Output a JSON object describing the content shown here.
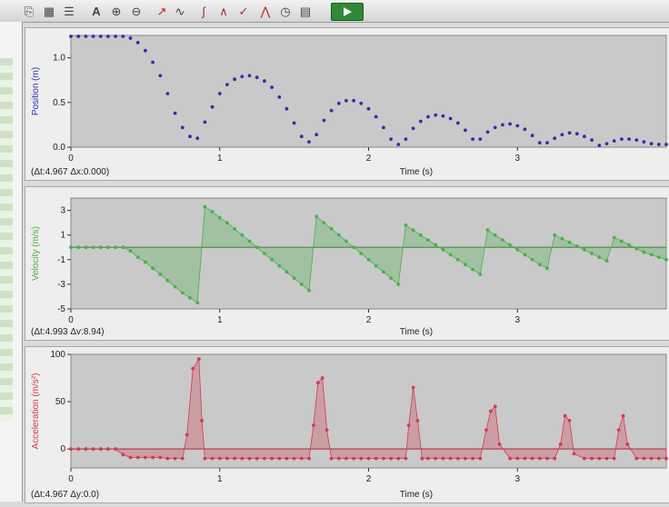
{
  "toolbar": {
    "icons": [
      "doc-icon",
      "table-icon",
      "text-icon",
      "zoom-in-icon",
      "zoom-out-icon",
      "fit-icon",
      "curve-icon",
      "tangent-icon",
      "integral-icon",
      "slope-icon",
      "peaks-icon",
      "clock-icon",
      "graph-icon",
      "play-icon"
    ]
  },
  "chart_data": [
    {
      "type": "scatter",
      "ylabel": "Position (m)",
      "xlabel": "Time (s)",
      "stats": "(Δt:4.967 Δx:0.000)",
      "color": "#2f2fb0",
      "xlim": [
        0,
        4.0
      ],
      "ylim": [
        0.0,
        1.25
      ],
      "xticks": [
        "0",
        "1",
        "2",
        "3"
      ],
      "yticks": [
        "0.0",
        "0.5",
        "1.0"
      ],
      "ytickvals": [
        0.0,
        0.5,
        1.0
      ],
      "x": [
        0.0,
        0.05,
        0.1,
        0.15,
        0.2,
        0.25,
        0.3,
        0.35,
        0.4,
        0.45,
        0.5,
        0.55,
        0.6,
        0.65,
        0.7,
        0.75,
        0.8,
        0.85,
        0.9,
        0.95,
        1.0,
        1.05,
        1.1,
        1.15,
        1.2,
        1.25,
        1.3,
        1.35,
        1.4,
        1.45,
        1.5,
        1.55,
        1.6,
        1.65,
        1.7,
        1.75,
        1.8,
        1.85,
        1.9,
        1.95,
        2.0,
        2.05,
        2.1,
        2.15,
        2.2,
        2.25,
        2.3,
        2.35,
        2.4,
        2.45,
        2.5,
        2.55,
        2.6,
        2.65,
        2.7,
        2.75,
        2.8,
        2.85,
        2.9,
        2.95,
        3.0,
        3.05,
        3.1,
        3.15,
        3.2,
        3.25,
        3.3,
        3.35,
        3.4,
        3.45,
        3.5,
        3.55,
        3.6,
        3.65,
        3.7,
        3.75,
        3.8,
        3.85,
        3.9,
        3.95,
        4.0
      ],
      "y": [
        1.24,
        1.24,
        1.24,
        1.24,
        1.24,
        1.24,
        1.24,
        1.24,
        1.22,
        1.17,
        1.08,
        0.95,
        0.8,
        0.6,
        0.38,
        0.22,
        0.12,
        0.1,
        0.28,
        0.45,
        0.6,
        0.7,
        0.76,
        0.79,
        0.8,
        0.78,
        0.74,
        0.67,
        0.56,
        0.43,
        0.27,
        0.12,
        0.06,
        0.14,
        0.3,
        0.41,
        0.49,
        0.52,
        0.52,
        0.49,
        0.43,
        0.34,
        0.22,
        0.09,
        0.03,
        0.09,
        0.21,
        0.29,
        0.34,
        0.36,
        0.35,
        0.32,
        0.27,
        0.19,
        0.09,
        0.09,
        0.17,
        0.22,
        0.25,
        0.26,
        0.24,
        0.2,
        0.13,
        0.05,
        0.05,
        0.1,
        0.14,
        0.16,
        0.15,
        0.12,
        0.08,
        0.02,
        0.04,
        0.07,
        0.09,
        0.09,
        0.08,
        0.06,
        0.04,
        0.03,
        0.03
      ]
    },
    {
      "type": "area",
      "ylabel": "Velocity (m/s)",
      "xlabel": "Time (s)",
      "stats": "(Δt:4.993 Δv:8.94)",
      "color": "#49b04a",
      "xlim": [
        0,
        4.0
      ],
      "ylim": [
        -5,
        4
      ],
      "xticks": [
        "0",
        "1",
        "2",
        "3"
      ],
      "yticks": [
        "3",
        "1",
        "-1",
        "-3",
        "-5"
      ],
      "ytickvals": [
        3,
        1,
        -1,
        -3,
        -5
      ],
      "x": [
        0.0,
        0.05,
        0.1,
        0.15,
        0.2,
        0.25,
        0.3,
        0.35,
        0.4,
        0.45,
        0.5,
        0.55,
        0.6,
        0.65,
        0.7,
        0.75,
        0.8,
        0.85,
        0.9,
        0.95,
        1.0,
        1.05,
        1.1,
        1.15,
        1.2,
        1.25,
        1.3,
        1.35,
        1.4,
        1.45,
        1.5,
        1.55,
        1.6,
        1.65,
        1.7,
        1.75,
        1.8,
        1.85,
        1.9,
        1.95,
        2.0,
        2.05,
        2.1,
        2.15,
        2.2,
        2.25,
        2.3,
        2.35,
        2.4,
        2.45,
        2.5,
        2.55,
        2.6,
        2.65,
        2.7,
        2.75,
        2.8,
        2.85,
        2.9,
        2.95,
        3.0,
        3.05,
        3.1,
        3.15,
        3.2,
        3.25,
        3.3,
        3.35,
        3.4,
        3.45,
        3.5,
        3.55,
        3.6,
        3.65,
        3.7,
        3.75,
        3.8,
        3.85,
        3.9,
        3.95,
        4.0
      ],
      "y": [
        0,
        0,
        0,
        0,
        0,
        0,
        0,
        0,
        -0.3,
        -0.8,
        -1.2,
        -1.7,
        -2.2,
        -2.7,
        -3.2,
        -3.7,
        -4.1,
        -4.5,
        3.3,
        2.9,
        2.4,
        2.0,
        1.5,
        1.0,
        0.5,
        0.0,
        -0.5,
        -1.0,
        -1.5,
        -2.0,
        -2.5,
        -3.0,
        -3.5,
        2.5,
        2.0,
        1.5,
        1.0,
        0.5,
        0.0,
        -0.5,
        -1.0,
        -1.5,
        -2.0,
        -2.5,
        -3.0,
        1.8,
        1.4,
        1.0,
        0.6,
        0.2,
        -0.2,
        -0.6,
        -1.0,
        -1.4,
        -1.8,
        -2.2,
        1.4,
        1.0,
        0.6,
        0.2,
        -0.2,
        -0.6,
        -1.0,
        -1.4,
        -1.7,
        1.0,
        0.7,
        0.4,
        0.1,
        -0.2,
        -0.5,
        -0.8,
        -1.1,
        0.8,
        0.5,
        0.2,
        -0.1,
        -0.4,
        -0.6,
        -0.8,
        -1.0
      ]
    },
    {
      "type": "area",
      "ylabel": "Acceleration (m/s²)",
      "xlabel": "Time (s)",
      "stats": "(Δt:4.967 Δy:0.0)",
      "color": "#d23a4e",
      "xlim": [
        0,
        4.0
      ],
      "ylim": [
        -20,
        100
      ],
      "xticks": [
        "0",
        "1",
        "2",
        "3"
      ],
      "yticks": [
        "100",
        "50",
        "0"
      ],
      "ytickvals": [
        100,
        50,
        0
      ],
      "x": [
        0.0,
        0.05,
        0.1,
        0.15,
        0.2,
        0.25,
        0.3,
        0.35,
        0.4,
        0.45,
        0.5,
        0.55,
        0.6,
        0.65,
        0.7,
        0.75,
        0.78,
        0.82,
        0.86,
        0.88,
        0.9,
        0.95,
        1.0,
        1.05,
        1.1,
        1.15,
        1.2,
        1.25,
        1.3,
        1.35,
        1.4,
        1.45,
        1.5,
        1.55,
        1.6,
        1.63,
        1.66,
        1.69,
        1.72,
        1.75,
        1.8,
        1.85,
        1.9,
        1.95,
        2.0,
        2.05,
        2.1,
        2.15,
        2.2,
        2.25,
        2.27,
        2.3,
        2.33,
        2.36,
        2.4,
        2.45,
        2.5,
        2.55,
        2.6,
        2.65,
        2.7,
        2.75,
        2.79,
        2.82,
        2.85,
        2.88,
        2.95,
        3.0,
        3.05,
        3.1,
        3.15,
        3.2,
        3.25,
        3.29,
        3.32,
        3.35,
        3.38,
        3.45,
        3.5,
        3.55,
        3.6,
        3.65,
        3.68,
        3.71,
        3.74,
        3.8,
        3.85,
        3.9,
        3.95,
        4.0
      ],
      "y": [
        0,
        0,
        0,
        0,
        0,
        0,
        0,
        -6,
        -9,
        -9,
        -9,
        -9,
        -9,
        -10,
        -10,
        -10,
        15,
        85,
        95,
        30,
        -10,
        -10,
        -10,
        -10,
        -10,
        -10,
        -10,
        -10,
        -10,
        -10,
        -10,
        -10,
        -10,
        -10,
        -10,
        25,
        70,
        75,
        20,
        -10,
        -10,
        -10,
        -10,
        -10,
        -10,
        -10,
        -10,
        -10,
        -10,
        -10,
        25,
        65,
        30,
        -10,
        -10,
        -10,
        -10,
        -10,
        -10,
        -10,
        -10,
        -10,
        20,
        40,
        45,
        5,
        -10,
        -10,
        -10,
        -10,
        -10,
        -10,
        -10,
        5,
        35,
        30,
        -5,
        -10,
        -10,
        -10,
        -10,
        -10,
        20,
        35,
        5,
        -10,
        -10,
        -10,
        -10,
        -10
      ]
    }
  ]
}
